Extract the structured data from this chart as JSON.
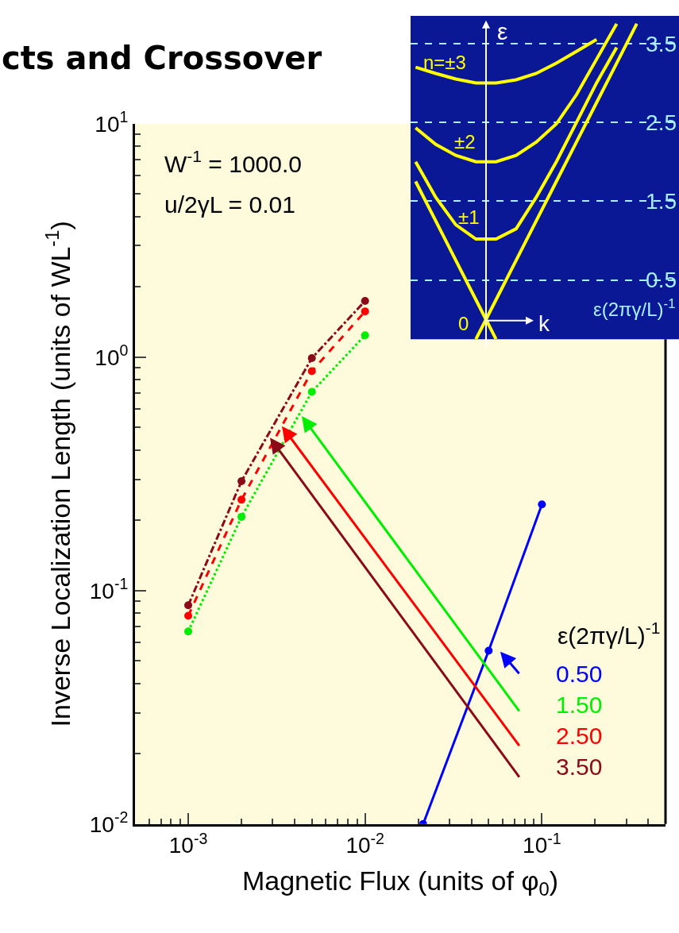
{
  "chart_data": [
    {
      "type": "line",
      "title": "cts and Crossover",
      "xlabel": "Magnetic Flux (units of φ$_{0}$)",
      "ylabel": "Inverse Localization Length (units of WL$^{-1}$)",
      "legend_title": "ε(2πγ/L)$^{-1}$",
      "annotations": [
        "W$^{-1}$ = 1000.0",
        "u/2γL = 0.01"
      ],
      "log": "xy",
      "xlim": [
        0.0005,
        0.5
      ],
      "ylim": [
        0.01,
        10
      ],
      "xticks": [
        {
          "value": 0.001,
          "label": "10$^{-3}$"
        },
        {
          "value": 0.01,
          "label": "10$^{-2}$"
        },
        {
          "value": 0.1,
          "label": "10$^{-1}$"
        }
      ],
      "yticks": [
        {
          "value": 0.01,
          "label": "10$^{-2}$"
        },
        {
          "value": 0.1,
          "label": "10$^{-1}$"
        },
        {
          "value": 1,
          "label": "10$^{0}$"
        },
        {
          "value": 10,
          "label": "10$^{1}$"
        }
      ],
      "grid": false,
      "legend": "bottom right",
      "marker": "circle",
      "series": [
        {
          "name": "0.50",
          "color": "#0000ff",
          "line_style": "solid",
          "x": [
            0.0213,
            0.05,
            0.1
          ],
          "values": [
            0.01,
            0.0553,
            0.234
          ]
        },
        {
          "name": "1.50",
          "color": "#00ee00",
          "line_style": "dotted",
          "x": [
            0.001,
            0.002,
            0.005,
            0.01
          ],
          "values": [
            0.0668,
            0.207,
            0.71,
            1.24
          ]
        },
        {
          "name": "2.50",
          "color": "#ff0000",
          "line_style": "dashed",
          "x": [
            0.001,
            0.002,
            0.005,
            0.01
          ],
          "values": [
            0.078,
            0.245,
            0.87,
            1.57
          ]
        },
        {
          "name": "3.50",
          "color": "#8b0a1a",
          "line_style": "dashdot",
          "x": [
            0.001,
            0.002,
            0.005,
            0.01
          ],
          "values": [
            0.0865,
            0.294,
            0.99,
            1.74
          ]
        }
      ]
    },
    {
      "type": "line",
      "xlabel": "k",
      "ylabel": "ε",
      "annotations": [
        "ε(2πγ/L)$^{-1}$"
      ],
      "categories": [
        null,
        null,
        null,
        null,
        null,
        null,
        null,
        null,
        null,
        null,
        null,
        null
      ],
      "ylim": [
        -0.25,
        3.85
      ],
      "yticks": [
        0.5,
        1.5,
        2.5,
        3.5
      ],
      "grid": "y",
      "tick_labels": "y",
      "marker": "none",
      "series": [
        {
          "name": "0",
          "color": "#ffff00",
          "values": [
            1.75,
            1.25,
            0.75,
            0.25,
            -0.25,
            null,
            null,
            null,
            null,
            null,
            null,
            null
          ]
        },
        {
          "color": "#ffff00",
          "values": [
            null,
            null,
            null,
            -0.25,
            0.25,
            0.75,
            1.25,
            1.75,
            2.25,
            2.75,
            3.25,
            3.75
          ]
        },
        {
          "name": "±1",
          "color": "#ffff00",
          "values": [
            2.0,
            1.55,
            1.2,
            1.02,
            1.02,
            1.15,
            1.55,
            2.0,
            2.5,
            3.0,
            3.45,
            null
          ]
        },
        {
          "name": "±2",
          "color": "#ffff00",
          "values": [
            2.43,
            2.22,
            2.08,
            2.0,
            2.0,
            2.08,
            2.25,
            2.48,
            2.85,
            3.3,
            3.75,
            null
          ]
        },
        {
          "name": "n=±3",
          "color": "#ffff00",
          "values": [
            3.2,
            3.12,
            3.05,
            3.0,
            3.0,
            3.04,
            3.12,
            3.25,
            3.4,
            3.55,
            null,
            null
          ]
        }
      ]
    }
  ]
}
